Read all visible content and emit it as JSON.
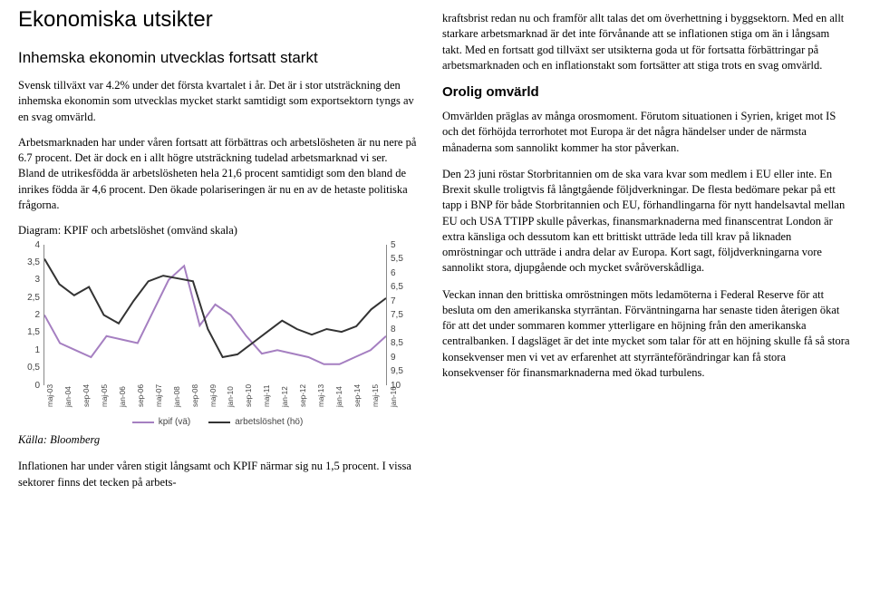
{
  "left": {
    "h1": "Ekonomiska utsikter",
    "h2": "Inhemska ekonomin utvecklas fortsatt starkt",
    "p1": "Svensk tillväxt var 4.2% under det första kvartalet i år. Det är i stor utsträckning den inhemska ekonomin som utvecklas mycket starkt samtidigt som exportsektorn tyngs av en svag omvärld.",
    "p2": "Arbetsmarknaden har under våren fortsatt att förbättras och arbetslösheten är nu nere på 6.7 procent. Det är dock en i allt högre utsträckning tudelad arbetsmarknad vi ser. Bland de utrikesfödda är arbetslösheten hela 21,6 procent samtidigt som den bland de inrikes födda är 4,6 procent. Den ökade polariseringen är nu en av de hetaste politiska frågorna.",
    "chart_title": "Diagram: KPIF och arbetslöshet (omvänd skala)",
    "source": "Källa: Bloomberg",
    "p3": "Inflationen har under våren stigit långsamt och KPIF närmar sig nu 1,5 procent. I vissa sektorer finns det tecken på arbets-"
  },
  "right": {
    "p1": "kraftsbrist redan nu och framför allt talas det om överhettning i byggsektorn. Med en allt starkare arbetsmarknad är det inte förvånande att se inflationen stiga om än i långsam takt. Med en fortsatt god tillväxt ser utsikterna goda ut för fortsatta förbättringar på arbetsmarknaden och en inflationstakt som fortsätter att stiga trots en svag omvärld.",
    "h3": "Orolig omvärld",
    "p2": "Omvärlden präglas av många orosmoment. Förutom situationen i Syrien, kriget mot IS och det förhöjda terrorhotet mot Europa är det några händelser under de närmsta månaderna som sannolikt kommer ha stor påverkan.",
    "p3": "Den 23 juni röstar Storbritannien om de ska vara kvar som medlem i EU eller inte. En Brexit skulle troligtvis få långtgående följdverkningar. De flesta bedömare pekar på ett tapp i BNP för både Storbritannien och EU, förhandlingarna för nytt handelsavtal mellan EU och USA TTIPP skulle påverkas, finansmarknaderna med finanscentrat London är extra känsliga och dessutom kan ett brittiskt utträde leda till krav på liknaden omröstningar och utträde i andra delar av Europa. Kort sagt, följdverkningarna vore sannolikt stora, djupgående och mycket svåröverskådliga.",
    "p4": "Veckan innan den brittiska omröstningen möts ledamöterna i Federal Reserve för att besluta om den amerikanska styrräntan. Förväntningarna har senaste tiden återigen ökat för att det under sommaren kommer ytterligare en höjning från den amerikanska centralbanken. I dagsläget är det inte mycket som talar för att en höjning skulle få så stora konsekvenser men vi vet av erfarenhet att styrränteförändringar kan få stora konsekvenser för finansmarknaderna med ökad turbulens."
  },
  "chart": {
    "type": "line",
    "left_axis": {
      "min": 0,
      "max": 4,
      "step": 0.5,
      "labels": [
        "0",
        "0,5",
        "1",
        "1,5",
        "2",
        "2,5",
        "3",
        "3,5",
        "4"
      ]
    },
    "right_axis": {
      "min": 5,
      "max": 10,
      "step": 0.5,
      "labels": [
        "5",
        "5,5",
        "6",
        "6,5",
        "7",
        "7,5",
        "8",
        "8,5",
        "9",
        "9,5",
        "10"
      ]
    },
    "x_labels": [
      "maj-03",
      "jan-04",
      "sep-04",
      "maj-05",
      "jan-06",
      "sep-06",
      "maj-07",
      "jan-08",
      "sep-08",
      "maj-09",
      "jan-10",
      "sep-10",
      "maj-11",
      "jan-12",
      "sep-12",
      "maj-13",
      "jan-14",
      "sep-14",
      "maj-15",
      "jan-16"
    ],
    "series": [
      {
        "name": "kpif (vä)",
        "color": "#a57fc1",
        "width": 2,
        "axis": "left",
        "data": [
          2.0,
          1.2,
          1.0,
          0.8,
          1.4,
          1.3,
          1.2,
          2.1,
          3.0,
          3.4,
          1.7,
          2.3,
          2.0,
          1.4,
          0.9,
          1.0,
          0.9,
          0.8,
          0.6,
          0.6,
          0.8,
          1.0,
          1.4
        ]
      },
      {
        "name": "arbetslöshet (hö)",
        "color": "#333333",
        "width": 2,
        "axis": "right",
        "data": [
          5.5,
          6.4,
          6.8,
          6.5,
          7.5,
          7.8,
          7.0,
          6.3,
          6.1,
          6.2,
          6.3,
          8.0,
          9.0,
          8.9,
          8.5,
          8.1,
          7.7,
          8.0,
          8.2,
          8.0,
          8.1,
          7.9,
          7.3,
          6.9
        ]
      }
    ],
    "legend": [
      {
        "label": "kpif (vä)",
        "color": "#a57fc1"
      },
      {
        "label": "arbetslöshet (hö)",
        "color": "#333333"
      }
    ],
    "grid_color": "#888888",
    "bg": "#ffffff"
  }
}
